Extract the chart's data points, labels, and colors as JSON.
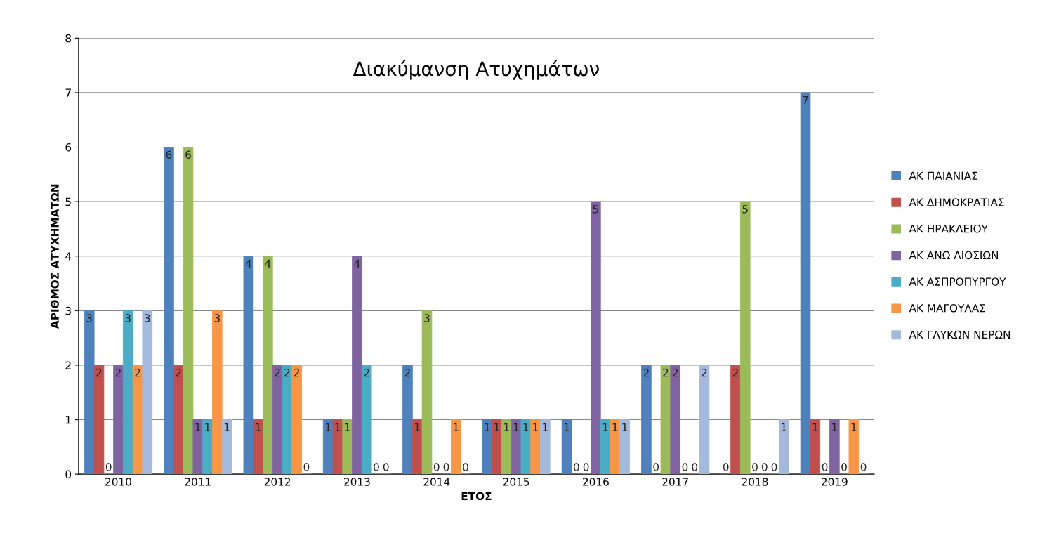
{
  "chart_data": {
    "type": "bar",
    "title": "Διακύμανση Ατυχημάτων",
    "xlabel": "ΕΤΟΣ",
    "ylabel": "ΑΡΙΘΜΟΣ ΑΤΥΧΗΜΑΤΩΝ",
    "categories": [
      "2010",
      "2011",
      "2012",
      "2013",
      "2014",
      "2015",
      "2016",
      "2017",
      "2018",
      "2019"
    ],
    "series": [
      {
        "name": "ΑΚ ΠΑΙΑΝΙΑΣ",
        "color": "#4f81bd",
        "values": [
          3,
          6,
          4,
          1,
          2,
          1,
          1,
          2,
          0,
          7
        ]
      },
      {
        "name": "ΑΚ ΔΗΜΟΚΡΑΤΙΑΣ",
        "color": "#c0504d",
        "values": [
          2,
          2,
          1,
          1,
          1,
          1,
          0,
          0,
          2,
          1
        ]
      },
      {
        "name": "ΑΚ ΗΡΑΚΛΕΙΟΥ",
        "color": "#9bbb59",
        "values": [
          0,
          6,
          4,
          1,
          3,
          1,
          0,
          2,
          5,
          0
        ]
      },
      {
        "name": "ΑΚ ΑΝΩ ΛΙΟΣΙΩΝ",
        "color": "#8064a2",
        "values": [
          2,
          1,
          2,
          4,
          0,
          1,
          5,
          2,
          0,
          1
        ]
      },
      {
        "name": "ΑΚ ΑΣΠΡΟΠΥΡΓΟΥ",
        "color": "#4bacc6",
        "values": [
          3,
          1,
          2,
          2,
          0,
          1,
          1,
          0,
          0,
          0
        ]
      },
      {
        "name": "ΑΚ ΜΑΓΟΥΛΑΣ",
        "color": "#f79646",
        "values": [
          2,
          3,
          2,
          0,
          1,
          1,
          1,
          0,
          0,
          1
        ]
      },
      {
        "name": "ΑΚ ΓΛΥΚΩΝ ΝΕΡΩΝ",
        "color": "#a5b9dc",
        "values": [
          3,
          1,
          0,
          0,
          0,
          1,
          1,
          2,
          1,
          0
        ]
      }
    ],
    "ylim": [
      0,
      8
    ],
    "yticks": [
      0,
      1,
      2,
      3,
      4,
      5,
      6,
      7,
      8
    ],
    "grid": "y",
    "legend": "right",
    "data_labels": true
  }
}
